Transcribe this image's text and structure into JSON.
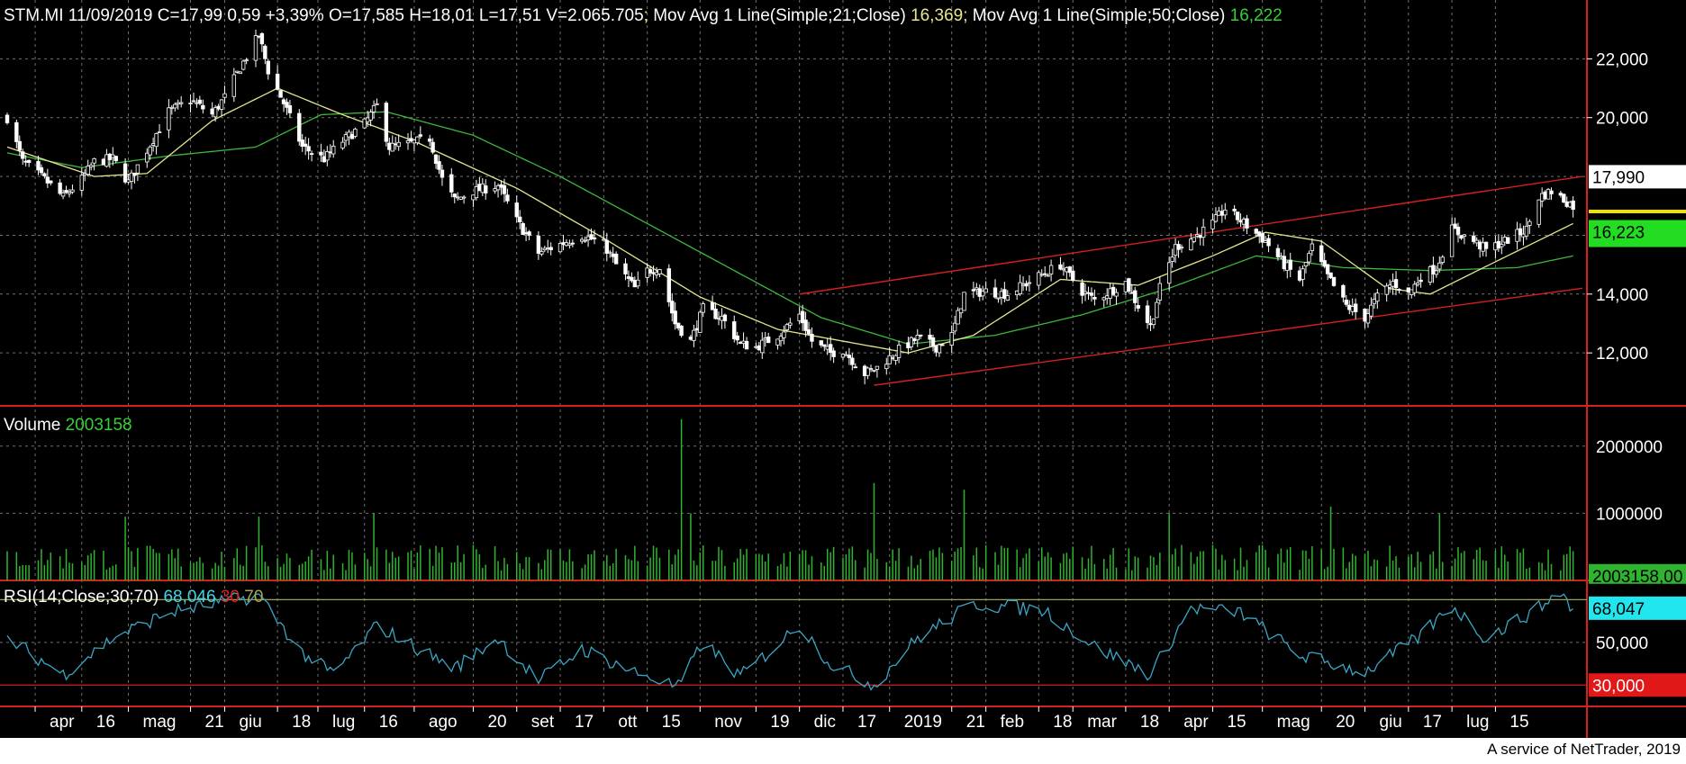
{
  "header": {
    "symbol": "STM.MI",
    "date": "11/09/2019",
    "close": "C=17,99",
    "change": "0,59",
    "pct": "+3,39%",
    "open": "O=17,585",
    "high": "H=18,01",
    "low": "L=17,51",
    "volume": "V=2.065.705",
    "ma21_label": "Mov Avg 1 Line(Simple;21;Close)",
    "ma21_value": "16,369",
    "ma50_label": "Mov Avg 1 Line(Simple;50;Close)",
    "ma50_value": "16,222"
  },
  "volume_panel": {
    "label": "Volume",
    "value": "2003158"
  },
  "rsi_panel": {
    "label": "RSI(14;Close;30;70)",
    "value": "68,046",
    "low": "30",
    "high": "70"
  },
  "footer": {
    "credit": "A service of NetTrader, 2019"
  },
  "chart_data": {
    "type": "candlestick",
    "colors": {
      "background": "#000000",
      "candle": "#ffffff",
      "ma21": "#e6e68c",
      "ma50": "#3cb83c",
      "trendline": "#d42020",
      "volume": "#2fb42f",
      "rsi": "#3aa6c4",
      "rsi_upper": "#a0a050",
      "rsi_lower": "#d42020",
      "grid": "#707070"
    },
    "price_axis": {
      "ticks": [
        "22,000",
        "20,000",
        "14,000",
        "12,000"
      ],
      "tick_values": [
        22,
        20,
        14,
        12
      ],
      "range": [
        10.2,
        24
      ]
    },
    "volume_axis": {
      "ticks": [
        "2000000",
        "1000000"
      ],
      "tick_values": [
        2000000,
        1000000
      ],
      "range": [
        0,
        2600000
      ]
    },
    "rsi_axis": {
      "ticks": [
        "50,000"
      ],
      "tick_values": [
        50
      ],
      "range": [
        20,
        79
      ],
      "upper_band": 70,
      "lower_band": 30
    },
    "badges": {
      "last_price": "17,990",
      "ma_value": "16,223",
      "volume_value": "2003158,00",
      "rsi_value": "68,047",
      "rsi_low_value": "30,000"
    },
    "x_axis_labels": [
      {
        "label": "apr",
        "date": "2018-04-01"
      },
      {
        "label": "16",
        "date": "2018-04-16"
      },
      {
        "label": "mag",
        "date": "2018-05-01"
      },
      {
        "label": "21",
        "date": "2018-05-21"
      },
      {
        "label": "giu",
        "date": "2018-06-01"
      },
      {
        "label": "18",
        "date": "2018-06-18"
      },
      {
        "label": "lug",
        "date": "2018-07-01"
      },
      {
        "label": "16",
        "date": "2018-07-16"
      },
      {
        "label": "ago",
        "date": "2018-08-01"
      },
      {
        "label": "20",
        "date": "2018-08-20"
      },
      {
        "label": "set",
        "date": "2018-09-03"
      },
      {
        "label": "17",
        "date": "2018-09-17"
      },
      {
        "label": "ott",
        "date": "2018-10-01"
      },
      {
        "label": "15",
        "date": "2018-10-15"
      },
      {
        "label": "nov",
        "date": "2018-11-01"
      },
      {
        "label": "19",
        "date": "2018-11-19"
      },
      {
        "label": "dic",
        "date": "2018-12-03"
      },
      {
        "label": "17",
        "date": "2018-12-17"
      },
      {
        "label": "2019",
        "date": "2019-01-01"
      },
      {
        "label": "21",
        "date": "2019-01-21"
      },
      {
        "label": "feb",
        "date": "2019-02-01"
      },
      {
        "label": "18",
        "date": "2019-02-18"
      },
      {
        "label": "mar",
        "date": "2019-03-01"
      },
      {
        "label": "18",
        "date": "2019-03-18"
      },
      {
        "label": "apr",
        "date": "2019-04-01"
      },
      {
        "label": "15",
        "date": "2019-04-15"
      },
      {
        "label": "mag",
        "date": "2019-05-01"
      },
      {
        "label": "20",
        "date": "2019-05-20"
      },
      {
        "label": "giu",
        "date": "2019-06-03"
      },
      {
        "label": "17",
        "date": "2019-06-17"
      },
      {
        "label": "lug",
        "date": "2019-07-01"
      },
      {
        "label": "15",
        "date": "2019-07-15"
      }
    ],
    "price_anchors": [
      {
        "date": "2018-03-23",
        "value": 20.0
      },
      {
        "date": "2018-03-28",
        "value": 18.5
      },
      {
        "date": "2018-04-04",
        "value": 17.9
      },
      {
        "date": "2018-04-10",
        "value": 17.3
      },
      {
        "date": "2018-04-16",
        "value": 17.9
      },
      {
        "date": "2018-04-20",
        "value": 18.5
      },
      {
        "date": "2018-04-26",
        "value": 18.6
      },
      {
        "date": "2018-05-01",
        "value": 17.8
      },
      {
        "date": "2018-05-07",
        "value": 18.9
      },
      {
        "date": "2018-05-14",
        "value": 20.2
      },
      {
        "date": "2018-05-21",
        "value": 20.6
      },
      {
        "date": "2018-05-28",
        "value": 20.1
      },
      {
        "date": "2018-06-01",
        "value": 20.7
      },
      {
        "date": "2018-06-06",
        "value": 21.7
      },
      {
        "date": "2018-06-12",
        "value": 22.8
      },
      {
        "date": "2018-06-15",
        "value": 21.6
      },
      {
        "date": "2018-06-20",
        "value": 20.5
      },
      {
        "date": "2018-06-26",
        "value": 19.0
      },
      {
        "date": "2018-07-03",
        "value": 18.6
      },
      {
        "date": "2018-07-09",
        "value": 19.2
      },
      {
        "date": "2018-07-16",
        "value": 19.8
      },
      {
        "date": "2018-07-20",
        "value": 20.4
      },
      {
        "date": "2018-07-24",
        "value": 19.0
      },
      {
        "date": "2018-07-30",
        "value": 19.1
      },
      {
        "date": "2018-08-06",
        "value": 19.3
      },
      {
        "date": "2018-08-10",
        "value": 17.9
      },
      {
        "date": "2018-08-14",
        "value": 17.2
      },
      {
        "date": "2018-08-20",
        "value": 17.5
      },
      {
        "date": "2018-08-28",
        "value": 17.7
      },
      {
        "date": "2018-09-03",
        "value": 16.5
      },
      {
        "date": "2018-09-10",
        "value": 15.4
      },
      {
        "date": "2018-09-17",
        "value": 15.7
      },
      {
        "date": "2018-09-24",
        "value": 16.0
      },
      {
        "date": "2018-10-01",
        "value": 15.7
      },
      {
        "date": "2018-10-05",
        "value": 15.0
      },
      {
        "date": "2018-10-11",
        "value": 14.2
      },
      {
        "date": "2018-10-15",
        "value": 14.8
      },
      {
        "date": "2018-10-19",
        "value": 14.9
      },
      {
        "date": "2018-10-24",
        "value": 13.0
      },
      {
        "date": "2018-10-29",
        "value": 12.4
      },
      {
        "date": "2018-11-02",
        "value": 13.5
      },
      {
        "date": "2018-11-08",
        "value": 13.2
      },
      {
        "date": "2018-11-14",
        "value": 12.3
      },
      {
        "date": "2018-11-19",
        "value": 12.2
      },
      {
        "date": "2018-11-26",
        "value": 12.6
      },
      {
        "date": "2018-12-03",
        "value": 13.3
      },
      {
        "date": "2018-12-07",
        "value": 12.4
      },
      {
        "date": "2018-12-13",
        "value": 12.0
      },
      {
        "date": "2018-12-17",
        "value": 12.1
      },
      {
        "date": "2018-12-24",
        "value": 11.3
      },
      {
        "date": "2018-12-28",
        "value": 11.5
      },
      {
        "date": "2019-01-04",
        "value": 12.1
      },
      {
        "date": "2019-01-10",
        "value": 12.5
      },
      {
        "date": "2019-01-16",
        "value": 12.2
      },
      {
        "date": "2019-01-21",
        "value": 12.6
      },
      {
        "date": "2019-01-25",
        "value": 14.0
      },
      {
        "date": "2019-02-01",
        "value": 14.1
      },
      {
        "date": "2019-02-08",
        "value": 14.0
      },
      {
        "date": "2019-02-18",
        "value": 14.6
      },
      {
        "date": "2019-02-25",
        "value": 15.0
      },
      {
        "date": "2019-03-04",
        "value": 14.1
      },
      {
        "date": "2019-03-08",
        "value": 13.8
      },
      {
        "date": "2019-03-13",
        "value": 14.1
      },
      {
        "date": "2019-03-18",
        "value": 14.4
      },
      {
        "date": "2019-03-22",
        "value": 13.6
      },
      {
        "date": "2019-03-26",
        "value": 12.9
      },
      {
        "date": "2019-03-29",
        "value": 14.2
      },
      {
        "date": "2019-04-03",
        "value": 15.6
      },
      {
        "date": "2019-04-10",
        "value": 16.0
      },
      {
        "date": "2019-04-15",
        "value": 16.4
      },
      {
        "date": "2019-04-19",
        "value": 16.9
      },
      {
        "date": "2019-04-24",
        "value": 16.5
      },
      {
        "date": "2019-05-02",
        "value": 15.8
      },
      {
        "date": "2019-05-08",
        "value": 15.0
      },
      {
        "date": "2019-05-13",
        "value": 14.5
      },
      {
        "date": "2019-05-17",
        "value": 15.6
      },
      {
        "date": "2019-05-22",
        "value": 14.6
      },
      {
        "date": "2019-05-28",
        "value": 13.6
      },
      {
        "date": "2019-06-03",
        "value": 13.2
      },
      {
        "date": "2019-06-07",
        "value": 13.9
      },
      {
        "date": "2019-06-12",
        "value": 14.4
      },
      {
        "date": "2019-06-17",
        "value": 14.0
      },
      {
        "date": "2019-06-21",
        "value": 14.6
      },
      {
        "date": "2019-06-26",
        "value": 14.9
      },
      {
        "date": "2019-07-01",
        "value": 16.2
      },
      {
        "date": "2019-07-08",
        "value": 15.8
      },
      {
        "date": "2019-07-12",
        "value": 15.5
      },
      {
        "date": "2019-07-18",
        "value": 15.8
      },
      {
        "date": "2019-07-25",
        "value": 16.2
      },
      {
        "date": "2019-07-29",
        "value": 17.3
      },
      {
        "date": "2019-08-02",
        "value": 17.5
      },
      {
        "date": "2019-08-09",
        "value": 17.0
      }
    ],
    "ma21_anchors": [
      {
        "date": "2018-03-23",
        "value": 19.0
      },
      {
        "date": "2018-04-20",
        "value": 18.0
      },
      {
        "date": "2018-05-07",
        "value": 18.1
      },
      {
        "date": "2018-05-28",
        "value": 19.9
      },
      {
        "date": "2018-06-18",
        "value": 21.0
      },
      {
        "date": "2018-07-09",
        "value": 20.1
      },
      {
        "date": "2018-08-01",
        "value": 19.2
      },
      {
        "date": "2018-09-03",
        "value": 17.6
      },
      {
        "date": "2018-10-01",
        "value": 15.9
      },
      {
        "date": "2018-11-01",
        "value": 13.9
      },
      {
        "date": "2018-11-26",
        "value": 12.8
      },
      {
        "date": "2018-12-17",
        "value": 12.4
      },
      {
        "date": "2019-01-07",
        "value": 12.0
      },
      {
        "date": "2019-01-28",
        "value": 12.6
      },
      {
        "date": "2019-02-25",
        "value": 14.5
      },
      {
        "date": "2019-03-22",
        "value": 14.3
      },
      {
        "date": "2019-04-15",
        "value": 15.3
      },
      {
        "date": "2019-05-02",
        "value": 16.1
      },
      {
        "date": "2019-05-20",
        "value": 15.8
      },
      {
        "date": "2019-06-10",
        "value": 14.2
      },
      {
        "date": "2019-06-24",
        "value": 14.0
      },
      {
        "date": "2019-07-15",
        "value": 15.1
      },
      {
        "date": "2019-08-09",
        "value": 16.4
      }
    ],
    "ma50_anchors": [
      {
        "date": "2018-03-23",
        "value": 18.8
      },
      {
        "date": "2018-04-16",
        "value": 18.3
      },
      {
        "date": "2018-05-14",
        "value": 18.7
      },
      {
        "date": "2018-06-11",
        "value": 19.0
      },
      {
        "date": "2018-07-02",
        "value": 20.1
      },
      {
        "date": "2018-07-23",
        "value": 20.2
      },
      {
        "date": "2018-08-20",
        "value": 19.4
      },
      {
        "date": "2018-09-17",
        "value": 18.0
      },
      {
        "date": "2018-10-15",
        "value": 16.4
      },
      {
        "date": "2018-11-12",
        "value": 14.8
      },
      {
        "date": "2018-12-10",
        "value": 13.2
      },
      {
        "date": "2019-01-07",
        "value": 12.3
      },
      {
        "date": "2019-02-04",
        "value": 12.6
      },
      {
        "date": "2019-03-04",
        "value": 13.3
      },
      {
        "date": "2019-04-01",
        "value": 14.2
      },
      {
        "date": "2019-04-29",
        "value": 15.3
      },
      {
        "date": "2019-05-27",
        "value": 14.9
      },
      {
        "date": "2019-06-24",
        "value": 14.8
      },
      {
        "date": "2019-07-22",
        "value": 14.9
      },
      {
        "date": "2019-08-09",
        "value": 15.3
      }
    ],
    "channel_lines": [
      {
        "name": "upper",
        "from": {
          "date": "2018-12-03",
          "value": 14.0
        },
        "to": {
          "date": "2019-08-12",
          "value": 18.0
        }
      },
      {
        "name": "lower",
        "from": {
          "date": "2018-12-27",
          "value": 10.9
        },
        "to": {
          "date": "2019-08-12",
          "value": 14.2
        }
      }
    ],
    "volume_spikes": [
      {
        "date": "2018-04-30",
        "value": 950000
      },
      {
        "date": "2018-06-12",
        "value": 950000
      },
      {
        "date": "2018-07-19",
        "value": 1000000
      },
      {
        "date": "2018-10-26",
        "value": 2400000
      },
      {
        "date": "2018-10-29",
        "value": 1000000
      },
      {
        "date": "2018-12-27",
        "value": 1450000
      },
      {
        "date": "2019-01-25",
        "value": 1350000
      },
      {
        "date": "2019-04-01",
        "value": 1000000
      },
      {
        "date": "2019-05-23",
        "value": 1100000
      },
      {
        "date": "2019-06-27",
        "value": 1000000
      }
    ],
    "rsi_anchors": [
      {
        "date": "2018-03-23",
        "value": 52
      },
      {
        "date": "2018-04-10",
        "value": 35
      },
      {
        "date": "2018-04-26",
        "value": 52
      },
      {
        "date": "2018-05-14",
        "value": 64
      },
      {
        "date": "2018-06-12",
        "value": 72
      },
      {
        "date": "2018-06-26",
        "value": 45
      },
      {
        "date": "2018-07-06",
        "value": 35
      },
      {
        "date": "2018-07-20",
        "value": 58
      },
      {
        "date": "2018-08-01",
        "value": 48
      },
      {
        "date": "2018-08-14",
        "value": 38
      },
      {
        "date": "2018-08-28",
        "value": 52
      },
      {
        "date": "2018-09-10",
        "value": 32
      },
      {
        "date": "2018-09-24",
        "value": 47
      },
      {
        "date": "2018-10-11",
        "value": 36
      },
      {
        "date": "2018-10-25",
        "value": 29
      },
      {
        "date": "2018-11-02",
        "value": 50
      },
      {
        "date": "2018-11-14",
        "value": 34
      },
      {
        "date": "2018-12-03",
        "value": 58
      },
      {
        "date": "2018-12-13",
        "value": 40
      },
      {
        "date": "2018-12-27",
        "value": 30
      },
      {
        "date": "2019-01-10",
        "value": 52
      },
      {
        "date": "2019-01-28",
        "value": 68
      },
      {
        "date": "2019-02-20",
        "value": 65
      },
      {
        "date": "2019-03-08",
        "value": 48
      },
      {
        "date": "2019-03-26",
        "value": 35
      },
      {
        "date": "2019-04-08",
        "value": 66
      },
      {
        "date": "2019-04-24",
        "value": 64
      },
      {
        "date": "2019-05-13",
        "value": 44
      },
      {
        "date": "2019-06-03",
        "value": 36
      },
      {
        "date": "2019-06-20",
        "value": 52
      },
      {
        "date": "2019-07-01",
        "value": 67
      },
      {
        "date": "2019-07-12",
        "value": 52
      },
      {
        "date": "2019-07-29",
        "value": 66
      },
      {
        "date": "2019-08-05",
        "value": 74
      },
      {
        "date": "2019-08-12",
        "value": 58
      }
    ]
  }
}
